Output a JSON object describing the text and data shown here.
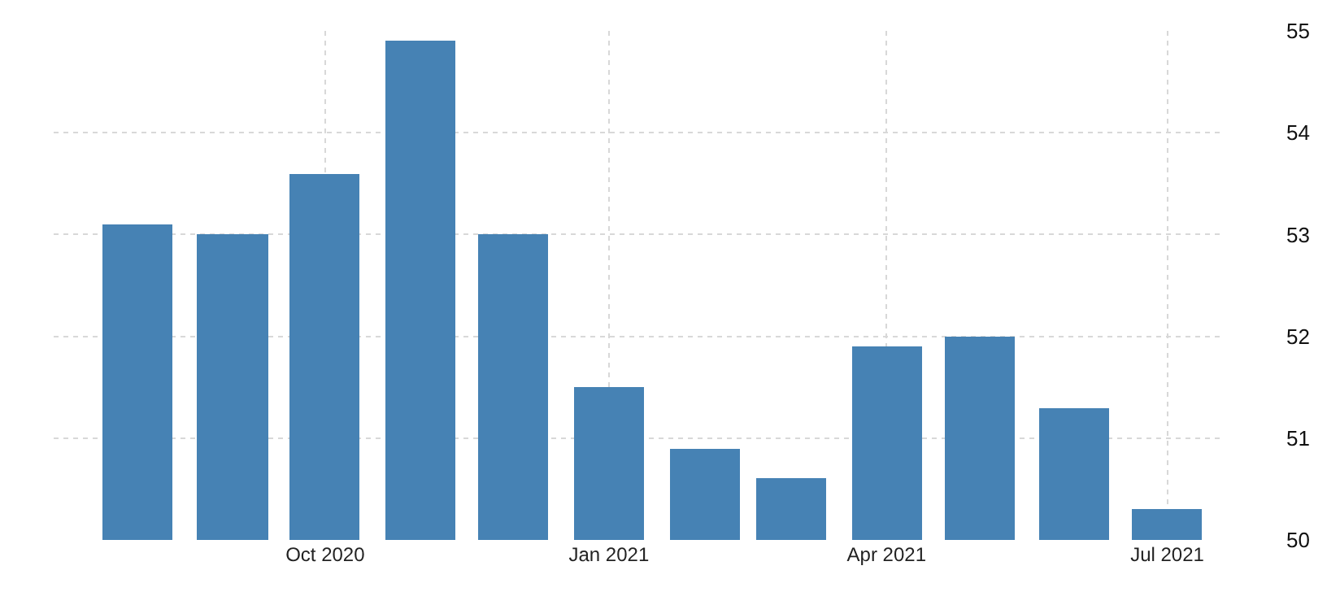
{
  "chart_data": {
    "type": "bar",
    "x": [
      "2020-08",
      "2020-09",
      "2020-10",
      "2020-11",
      "2020-12",
      "2021-01",
      "2021-02",
      "2021-03",
      "2021-04",
      "2021-05",
      "2021-06",
      "2021-07"
    ],
    "values": [
      53.1,
      53.0,
      53.6,
      54.9,
      53.0,
      51.5,
      50.9,
      50.6,
      51.9,
      52.0,
      51.3,
      50.3
    ],
    "color": "#4682b4",
    "xlim": [
      "2020-07-05",
      "2021-07-18"
    ],
    "xticks": [
      {
        "value": "2020-10",
        "label": "Oct 2020"
      },
      {
        "value": "2021-01",
        "label": "Jan 2021"
      },
      {
        "value": "2021-04",
        "label": "Apr 2021"
      },
      {
        "value": "2021-07",
        "label": "Jul 2021"
      }
    ],
    "ylim": [
      50,
      55
    ],
    "yticks": [
      50,
      51,
      52,
      53,
      54,
      55
    ],
    "grid": true
  }
}
